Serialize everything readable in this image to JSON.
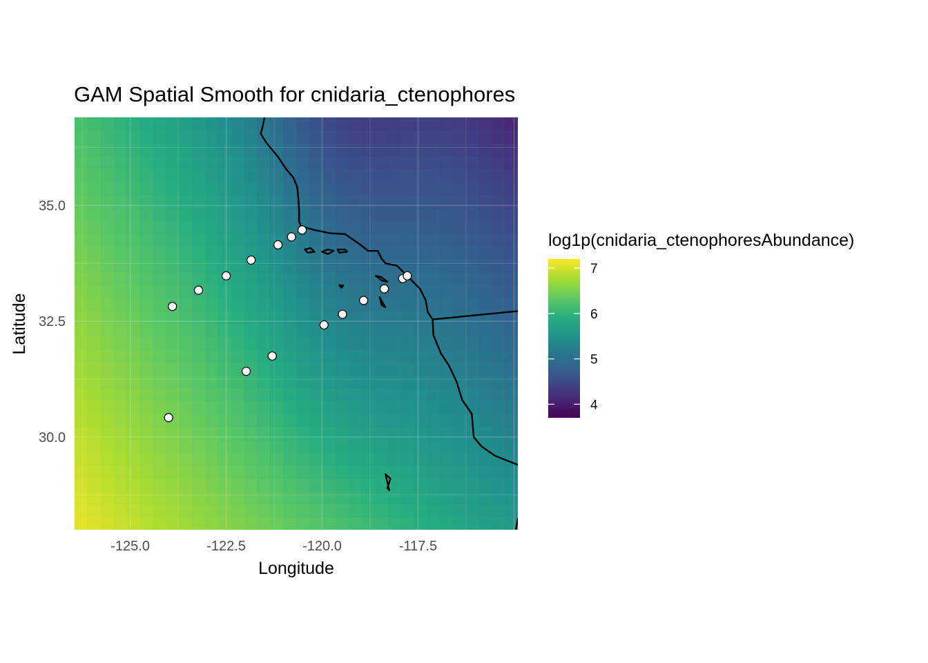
{
  "chart_data": {
    "type": "heatmap",
    "title": "GAM Spatial Smooth for cnidaria_ctenophores",
    "xlabel": "Longitude",
    "ylabel": "Latitude",
    "xlim": [
      -126.45,
      -114.9
    ],
    "ylim": [
      28.0,
      36.9
    ],
    "x_ticks": [
      -125.0,
      -122.5,
      -120.0,
      -117.5
    ],
    "x_tick_labels": [
      "-125.0",
      "-122.5",
      "-120.0",
      "-117.5"
    ],
    "y_ticks": [
      30.0,
      32.5,
      35.0
    ],
    "y_tick_labels": [
      "30.0",
      "32.5",
      "35.0"
    ],
    "grid": true,
    "colorscale": "viridis",
    "colorbar": {
      "title": "log1p(cnidaria_ctenophoresAbundance)",
      "min": 3.7,
      "max": 7.2,
      "ticks": [
        4,
        5,
        6,
        7
      ],
      "tick_labels": [
        "4",
        "5",
        "6",
        "7"
      ],
      "placement": "right"
    },
    "surface_model": {
      "description_value_at": "smooth field approx",
      "corners": {
        "bottom_left": 7.1,
        "bottom_right": 5.6,
        "top_left": 6.2,
        "top_right": 4.1
      }
    },
    "stations": [
      {
        "lon": -124.0,
        "lat": 30.42
      },
      {
        "lon": -121.98,
        "lat": 31.42
      },
      {
        "lon": -121.3,
        "lat": 31.75
      },
      {
        "lon": -123.9,
        "lat": 32.82
      },
      {
        "lon": -123.22,
        "lat": 33.17
      },
      {
        "lon": -122.5,
        "lat": 33.48
      },
      {
        "lon": -121.85,
        "lat": 33.82
      },
      {
        "lon": -121.15,
        "lat": 34.15
      },
      {
        "lon": -120.8,
        "lat": 34.32
      },
      {
        "lon": -120.52,
        "lat": 34.47
      },
      {
        "lon": -119.95,
        "lat": 32.42
      },
      {
        "lon": -119.47,
        "lat": 32.65
      },
      {
        "lon": -118.92,
        "lat": 32.95
      },
      {
        "lon": -118.38,
        "lat": 33.2
      },
      {
        "lon": -117.9,
        "lat": 33.42
      },
      {
        "lon": -117.78,
        "lat": 33.48
      }
    ],
    "coastline": [
      [
        -121.5,
        36.9
      ],
      [
        -121.55,
        36.7
      ],
      [
        -121.6,
        36.55
      ],
      [
        -121.45,
        36.35
      ],
      [
        -121.15,
        36.05
      ],
      [
        -120.95,
        35.8
      ],
      [
        -120.75,
        35.6
      ],
      [
        -120.65,
        35.4
      ],
      [
        -120.62,
        35.15
      ],
      [
        -120.6,
        34.9
      ],
      [
        -120.6,
        34.65
      ],
      [
        -120.55,
        34.55
      ],
      [
        -120.2,
        34.47
      ],
      [
        -119.8,
        34.4
      ],
      [
        -119.4,
        34.38
      ],
      [
        -119.0,
        34.15
      ],
      [
        -118.8,
        34.02
      ],
      [
        -118.55,
        34.02
      ],
      [
        -118.45,
        33.85
      ],
      [
        -118.35,
        33.75
      ],
      [
        -118.05,
        33.7
      ],
      [
        -117.75,
        33.45
      ],
      [
        -117.45,
        33.2
      ],
      [
        -117.3,
        32.95
      ],
      [
        -117.25,
        32.7
      ],
      [
        -117.12,
        32.54
      ],
      [
        -117.1,
        32.2
      ],
      [
        -116.9,
        31.8
      ],
      [
        -116.7,
        31.55
      ],
      [
        -116.5,
        31.2
      ],
      [
        -116.35,
        30.8
      ],
      [
        -116.1,
        30.5
      ],
      [
        -116.05,
        30.0
      ],
      [
        -115.85,
        29.8
      ],
      [
        -115.5,
        29.6
      ],
      [
        -114.9,
        29.4
      ]
    ],
    "border": [
      [
        -117.12,
        32.54
      ],
      [
        -114.9,
        32.72
      ]
    ],
    "extra_coast": [
      [
        -114.95,
        28.0
      ],
      [
        -114.9,
        28.25
      ]
    ],
    "islands": [
      [
        [
          -120.45,
          34.05
        ],
        [
          -120.3,
          34.08
        ],
        [
          -120.2,
          34.0
        ],
        [
          -120.38,
          33.98
        ],
        [
          -120.45,
          34.05
        ]
      ],
      [
        [
          -120.0,
          34.0
        ],
        [
          -119.85,
          34.05
        ],
        [
          -119.7,
          34.02
        ],
        [
          -119.85,
          33.95
        ],
        [
          -120.0,
          34.0
        ]
      ],
      [
        [
          -119.6,
          34.05
        ],
        [
          -119.4,
          34.05
        ],
        [
          -119.35,
          34.0
        ],
        [
          -119.55,
          33.98
        ],
        [
          -119.6,
          34.05
        ]
      ],
      [
        [
          -119.55,
          33.28
        ],
        [
          -119.45,
          33.27
        ],
        [
          -119.5,
          33.22
        ],
        [
          -119.55,
          33.28
        ]
      ],
      [
        [
          -118.6,
          33.48
        ],
        [
          -118.45,
          33.45
        ],
        [
          -118.3,
          33.35
        ],
        [
          -118.45,
          33.38
        ],
        [
          -118.6,
          33.48
        ]
      ],
      [
        [
          -118.5,
          33.02
        ],
        [
          -118.42,
          32.9
        ],
        [
          -118.35,
          32.8
        ],
        [
          -118.45,
          32.85
        ],
        [
          -118.5,
          33.02
        ]
      ],
      [
        [
          -118.35,
          29.2
        ],
        [
          -118.22,
          29.1
        ],
        [
          -118.3,
          28.9
        ],
        [
          -118.25,
          28.85
        ],
        [
          -118.35,
          29.2
        ]
      ]
    ]
  }
}
